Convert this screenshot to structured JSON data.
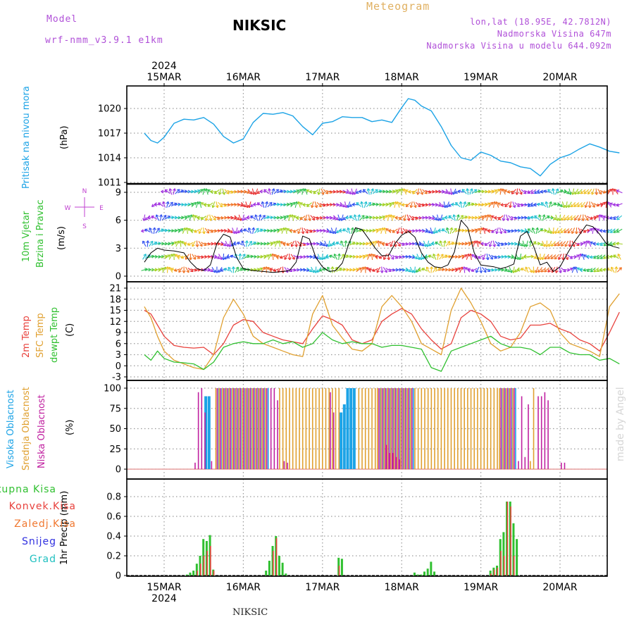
{
  "header": {
    "model_label": "Model",
    "model_name": "wrf-nmm_v3.9.1 e1km",
    "station": "NIKSIC",
    "meteogram": "Meteogram",
    "lonlat": "lon,lat (18.95E, 42.7812N)",
    "elevation": "Nadmorska Visina 647m",
    "model_elevation": "Nadmorska Visina u modelu 644.092m"
  },
  "footer": {
    "station": "NIKSIC",
    "watermark": "made by Angel"
  },
  "axis": {
    "year": "2024",
    "days": [
      "15MAR",
      "16MAR",
      "17MAR",
      "18MAR",
      "19MAR",
      "20MAR"
    ]
  },
  "colors": {
    "pressure": "#1ca3e6",
    "temp2m": "#e8413c",
    "sfc": "#e0a030",
    "dewpt": "#30c030",
    "high_cloud": "#1ca3e6",
    "mid_cloud": "#e0a030",
    "low_cloud": "#c020a0",
    "total_precip": "#30c030",
    "conv_precip": "#e8413c",
    "frozen": "#f07830",
    "snow": "#3030e0",
    "graupel": "#20c0c0",
    "wind_label": "#30c030",
    "compass": "#c040d0",
    "header_purple": "#b050d8",
    "meteogram_color": "#e0b060"
  },
  "panels": {
    "pressure": {
      "labels": [
        "Pritisak na nivou mora"
      ],
      "unit": "(hPa)"
    },
    "wind": {
      "labels": [
        "10m Vjetar",
        "Brzina i Pravac"
      ],
      "unit": "(m/s)",
      "compass": [
        "N",
        "E",
        "S",
        "W"
      ]
    },
    "temp": {
      "labels": [
        "2m Temp",
        "SFC Temp",
        "dewpt Temp"
      ],
      "unit": "(C)"
    },
    "cloud": {
      "labels": [
        "Visoka Oblacnost",
        "Srednja Oblacnost",
        "Niska Oblacnost"
      ],
      "unit": "(%)"
    },
    "precip": {
      "unit": "1hr Precip (mm)",
      "legend": [
        "Ukupna Kisa",
        "Konvek.Kisa",
        "Zaledj.Kisa",
        "Snijeg",
        "Grad"
      ]
    }
  },
  "chart_data": [
    {
      "type": "line",
      "title": "Pritisak na nivou mora",
      "ylabel": "(hPa)",
      "x_unit": "hours from 15MAR 00UTC",
      "ylim": [
        1011,
        1021
      ],
      "yticks": [
        1011,
        1014,
        1017,
        1020
      ],
      "series": [
        {
          "name": "Pritisak na nivou mora",
          "x": [
            -6,
            -4,
            -2,
            0,
            3,
            6,
            9,
            12,
            15,
            18,
            21,
            24,
            27,
            30,
            33,
            36,
            39,
            42,
            45,
            48,
            51,
            54,
            57,
            60,
            63,
            66,
            69,
            72,
            74,
            76,
            78,
            81,
            84,
            87,
            90,
            93,
            96,
            99,
            102,
            105,
            108,
            111,
            114,
            117,
            120,
            123,
            126,
            129,
            132,
            135,
            138
          ],
          "values": [
            1017,
            1016.1,
            1015.8,
            1016.5,
            1018.2,
            1018.7,
            1018.6,
            1018.9,
            1018.1,
            1016.6,
            1015.8,
            1016.3,
            1018.3,
            1019.4,
            1019.3,
            1019.5,
            1019.1,
            1017.8,
            1016.8,
            1018.2,
            1018.4,
            1019,
            1018.9,
            1018.9,
            1018.4,
            1018.6,
            1018.3,
            1020.1,
            1021.2,
            1021,
            1020.3,
            1019.7,
            1017.8,
            1015.5,
            1014,
            1013.7,
            1014.7,
            1014.3,
            1013.6,
            1013.4,
            1012.9,
            1012.7,
            1011.8,
            1013.2,
            1014,
            1014.4,
            1015.1,
            1015.7,
            1015.3,
            1014.8,
            1014.6
          ]
        }
      ]
    },
    {
      "type": "line",
      "title": "10m Vjetar Brzina i Pravac",
      "ylabel": "(m/s)",
      "x_unit": "hours from 15MAR 00UTC",
      "ylim": [
        -0.5,
        10
      ],
      "yticks": [
        0,
        3,
        6,
        9
      ],
      "series": [
        {
          "name": "10m Vjetar",
          "x": [
            -6,
            -4,
            -2,
            0,
            3,
            6,
            8,
            10,
            12,
            14,
            16,
            18,
            20,
            22,
            24,
            27,
            30,
            33,
            36,
            38,
            40,
            42,
            44,
            46,
            48,
            50,
            52,
            54,
            56,
            58,
            60,
            62,
            64,
            66,
            68,
            70,
            72,
            74,
            76,
            78,
            80,
            82,
            84,
            86,
            88,
            90,
            92,
            94,
            96,
            98,
            100,
            102,
            104,
            106,
            108,
            110,
            112,
            114,
            116,
            118,
            120,
            122,
            124,
            126,
            128,
            130,
            132,
            134,
            136,
            138
          ],
          "values": [
            1.5,
            2.5,
            3,
            2.8,
            2.7,
            2.5,
            1.5,
            0.8,
            0.6,
            1.2,
            3.5,
            4.5,
            4.2,
            2,
            0.8,
            0.6,
            0.5,
            0.4,
            0.5,
            0.6,
            1.5,
            4.3,
            4,
            2,
            1,
            0.5,
            0.6,
            1.4,
            3.5,
            5.2,
            5,
            4,
            3,
            2.2,
            2.2,
            3.5,
            4.4,
            4.8,
            4.2,
            2.5,
            1.5,
            1,
            0.9,
            1.2,
            2.6,
            6,
            5.2,
            2.5,
            1.2,
            1.1,
            1,
            0.8,
            1,
            1.3,
            4.3,
            4.8,
            3.2,
            1.2,
            1.5,
            0.5,
            1,
            2.3,
            3.5,
            4.5,
            5.5,
            5.3,
            4.5,
            3.5,
            3.2,
            3
          ]
        }
      ]
    },
    {
      "type": "line",
      "title": "2m Temp / SFC Temp / dewpt Temp",
      "ylabel": "(C)",
      "x_unit": "hours from 15MAR 00UTC",
      "ylim": [
        -3,
        21
      ],
      "yticks": [
        -3,
        0,
        3,
        6,
        9,
        12,
        15,
        18,
        21
      ],
      "series": [
        {
          "name": "2m Temp",
          "x": [
            -6,
            -4,
            -2,
            0,
            3,
            6,
            9,
            12,
            15,
            18,
            21,
            24,
            27,
            30,
            33,
            36,
            39,
            42,
            45,
            48,
            51,
            54,
            57,
            60,
            63,
            66,
            69,
            72,
            75,
            78,
            81,
            84,
            87,
            90,
            93,
            96,
            99,
            102,
            105,
            108,
            111,
            114,
            117,
            120,
            123,
            126,
            129,
            132,
            135,
            138
          ],
          "values": [
            15,
            14,
            11,
            8,
            5.5,
            5,
            4.8,
            5,
            3,
            6,
            11,
            12.5,
            12,
            9,
            8,
            7,
            6.5,
            6,
            10,
            13.5,
            12.5,
            11,
            7,
            6,
            7,
            12,
            14,
            15.5,
            14,
            10,
            7,
            4.5,
            6,
            13,
            15,
            14,
            12,
            8,
            7,
            7.5,
            11,
            11,
            11.5,
            10,
            9,
            7,
            6,
            4,
            9,
            14.5
          ]
        },
        {
          "name": "SFC Temp",
          "x": [
            -6,
            -4,
            -2,
            0,
            3,
            6,
            9,
            12,
            15,
            18,
            21,
            24,
            27,
            30,
            33,
            36,
            39,
            42,
            45,
            48,
            51,
            54,
            57,
            60,
            63,
            66,
            69,
            72,
            75,
            78,
            81,
            84,
            87,
            90,
            93,
            96,
            99,
            102,
            105,
            108,
            111,
            114,
            117,
            120,
            123,
            126,
            129,
            132,
            135,
            138
          ],
          "values": [
            16,
            13,
            8,
            4,
            1.5,
            0.5,
            -0.5,
            -1,
            3,
            13,
            18,
            14,
            8,
            6,
            5,
            4,
            3,
            2.5,
            14,
            19,
            11,
            7.5,
            4.5,
            4,
            6,
            16,
            19,
            16,
            12,
            6,
            4.5,
            3,
            15,
            21,
            17,
            12,
            6,
            4,
            5,
            9,
            16,
            17,
            15,
            9,
            6,
            5,
            4,
            2.5,
            16,
            19.5
          ]
        },
        {
          "name": "dewpt Temp",
          "x": [
            -6,
            -4,
            -2,
            0,
            3,
            6,
            9,
            12,
            15,
            18,
            21,
            24,
            27,
            30,
            33,
            36,
            39,
            42,
            45,
            48,
            51,
            54,
            57,
            60,
            63,
            66,
            69,
            72,
            75,
            78,
            81,
            84,
            87,
            90,
            93,
            96,
            99,
            102,
            105,
            108,
            111,
            114,
            117,
            120,
            123,
            126,
            129,
            132,
            135,
            138
          ],
          "values": [
            3,
            1.5,
            4,
            2,
            1,
            0.8,
            0.5,
            -1,
            1,
            5,
            6,
            6.5,
            6,
            6,
            7,
            6,
            6.5,
            5,
            6,
            9,
            7,
            6,
            6.5,
            6,
            6,
            5,
            5.5,
            5.5,
            5,
            4.5,
            -0.5,
            -1.5,
            4,
            5,
            6,
            7,
            8,
            6,
            5,
            5,
            4.5,
            3,
            5,
            5,
            3.5,
            3,
            3,
            1.5,
            2,
            0.5
          ]
        }
      ]
    },
    {
      "type": "bar",
      "title": "Visoka / Srednja / Niska Oblacnost",
      "ylabel": "(%)",
      "x_unit": "hours from 15MAR 00UTC",
      "ylim": [
        0,
        100
      ],
      "yticks": [
        0,
        25,
        50,
        75,
        100
      ],
      "segments_100": [
        [
          16,
          31
        ],
        [
          65,
          75
        ],
        [
          102,
          106
        ]
      ],
      "series": [
        {
          "name": "Visoka Oblacnost",
          "x": [
            13,
            14,
            54,
            55,
            56,
            57,
            58
          ],
          "values": [
            90,
            90,
            70,
            80,
            100,
            100,
            100
          ]
        },
        {
          "name": "Srednja Oblacnost",
          "x": [
            35,
            36,
            37,
            38,
            39,
            40,
            41,
            42,
            43,
            44,
            45,
            46,
            47,
            48,
            49,
            50,
            51,
            52,
            53,
            59,
            60,
            61,
            62,
            63,
            64,
            76,
            77,
            78,
            79,
            80,
            81,
            82,
            83,
            84,
            85,
            86,
            87,
            88,
            89,
            90,
            91,
            92,
            93,
            94,
            95,
            96,
            97,
            98,
            99,
            100,
            101,
            111,
            112
          ],
          "values": [
            100,
            100,
            100,
            100,
            100,
            100,
            100,
            100,
            100,
            100,
            100,
            100,
            100,
            100,
            100,
            100,
            100,
            100,
            100,
            100,
            100,
            100,
            100,
            100,
            100,
            100,
            100,
            100,
            100,
            100,
            100,
            100,
            100,
            100,
            100,
            100,
            100,
            100,
            100,
            100,
            100,
            100,
            100,
            100,
            100,
            100,
            100,
            100,
            100,
            100,
            100,
            10,
            100
          ]
        },
        {
          "name": "Niska Oblacnost",
          "x": [
            9,
            10,
            11,
            12,
            14,
            32,
            33,
            34,
            36,
            37,
            50,
            51,
            67,
            68,
            69,
            70,
            71,
            107,
            108,
            109,
            110,
            113,
            114,
            115,
            116,
            120,
            121
          ],
          "values": [
            8,
            95,
            100,
            70,
            10,
            100,
            100,
            85,
            10,
            8,
            95,
            70,
            30,
            20,
            20,
            15,
            12,
            10,
            90,
            15,
            80,
            90,
            90,
            95,
            85,
            8,
            8
          ]
        }
      ]
    },
    {
      "type": "bar",
      "title": "1hr Precip",
      "ylabel": "1hr Precip (mm)",
      "x_unit": "hours from 15MAR 00UTC",
      "ylim": [
        0,
        0.9
      ],
      "yticks": [
        0,
        0.2,
        0.4,
        0.6,
        0.8
      ],
      "series": [
        {
          "name": "Ukupna Kisa",
          "x": [
            7,
            8,
            9,
            10,
            11,
            12,
            13,
            14,
            15,
            31,
            32,
            33,
            34,
            35,
            36,
            37,
            53,
            54,
            76,
            77,
            78,
            79,
            80,
            81,
            82,
            99,
            100,
            101,
            102,
            103,
            104,
            105,
            106,
            107
          ],
          "values": [
            0.01,
            0.03,
            0.05,
            0.12,
            0.2,
            0.37,
            0.35,
            0.41,
            0.06,
            0.05,
            0.15,
            0.3,
            0.4,
            0.2,
            0.13,
            0.02,
            0.18,
            0.17,
            0.03,
            0.01,
            0.01,
            0.04,
            0.07,
            0.14,
            0.04,
            0.05,
            0.08,
            0.1,
            0.37,
            0.44,
            0.75,
            0.75,
            0.53,
            0.37
          ]
        },
        {
          "name": "Konvek.Kisa",
          "x": [
            10,
            11,
            12,
            13,
            14,
            15,
            33,
            34,
            53,
            99,
            100,
            101,
            102,
            103,
            104,
            105,
            106
          ],
          "values": [
            0.05,
            0.12,
            0.2,
            0.25,
            0.3,
            0.05,
            0.25,
            0.38,
            0.1,
            0.02,
            0.06,
            0.08,
            0.25,
            0.2,
            0.75,
            0.7,
            0.2
          ]
        },
        {
          "name": "Zaledj.Kisa",
          "x": [],
          "values": []
        },
        {
          "name": "Snijeg",
          "x": [],
          "values": []
        },
        {
          "name": "Grad",
          "x": [],
          "values": []
        }
      ]
    }
  ]
}
